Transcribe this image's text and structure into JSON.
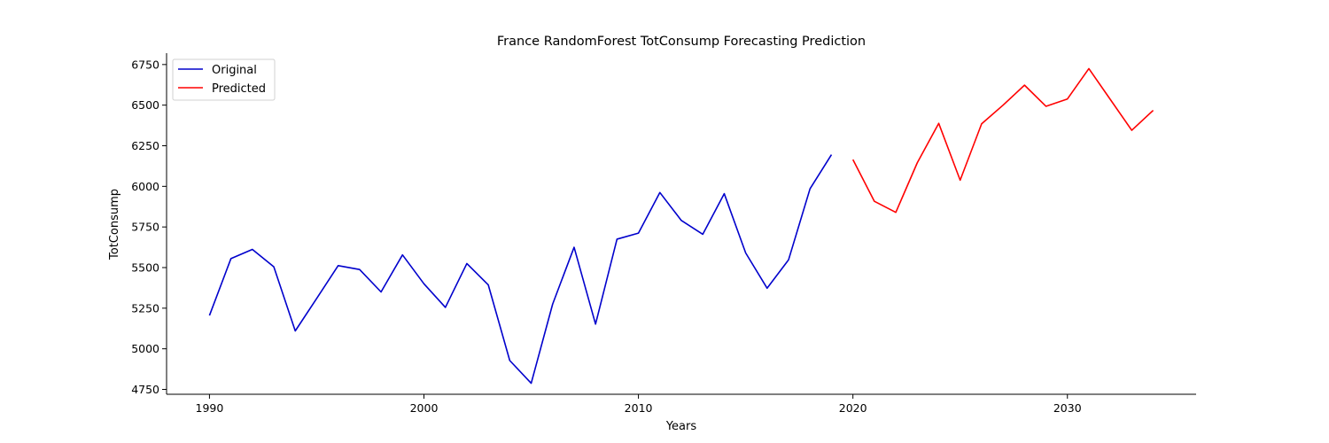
{
  "chart_data": {
    "type": "line",
    "title": "France RandomForest TotConsump Forecasting Prediction",
    "xlabel": "Years",
    "ylabel": "TotConsump",
    "xlim": [
      1988,
      2036
    ],
    "ylim": [
      4720,
      6820
    ],
    "xticks": [
      1990,
      2000,
      2010,
      2020,
      2030
    ],
    "yticks": [
      4750,
      5000,
      5250,
      5500,
      5750,
      6000,
      6250,
      6500,
      6750
    ],
    "grid": false,
    "legend_position": "top-left",
    "series": [
      {
        "name": "Original",
        "color": "#0000cc",
        "x": [
          1990,
          1991,
          1992,
          1993,
          1994,
          1995,
          1996,
          1997,
          1998,
          1999,
          2000,
          2001,
          2002,
          2003,
          2004,
          2005,
          2006,
          2007,
          2008,
          2009,
          2010,
          2011,
          2012,
          2013,
          2014,
          2015,
          2016,
          2017,
          2018,
          2019
        ],
        "values": [
          5205,
          5555,
          5612,
          5505,
          5110,
          5310,
          5512,
          5488,
          5350,
          5578,
          5400,
          5255,
          5525,
          5393,
          4928,
          4788,
          5275,
          5625,
          5152,
          5675,
          5712,
          5962,
          5790,
          5705,
          5955,
          5590,
          5373,
          5548,
          5985,
          6195
        ]
      },
      {
        "name": "Predicted",
        "color": "#ff0000",
        "x": [
          2020,
          2021,
          2022,
          2023,
          2024,
          2025,
          2026,
          2027,
          2028,
          2029,
          2030,
          2031,
          2032,
          2033,
          2034
        ],
        "values": [
          6165,
          5908,
          5840,
          6145,
          6388,
          6038,
          6385,
          6500,
          6623,
          6493,
          6538,
          6725,
          6535,
          6345,
          6468
        ]
      }
    ]
  }
}
